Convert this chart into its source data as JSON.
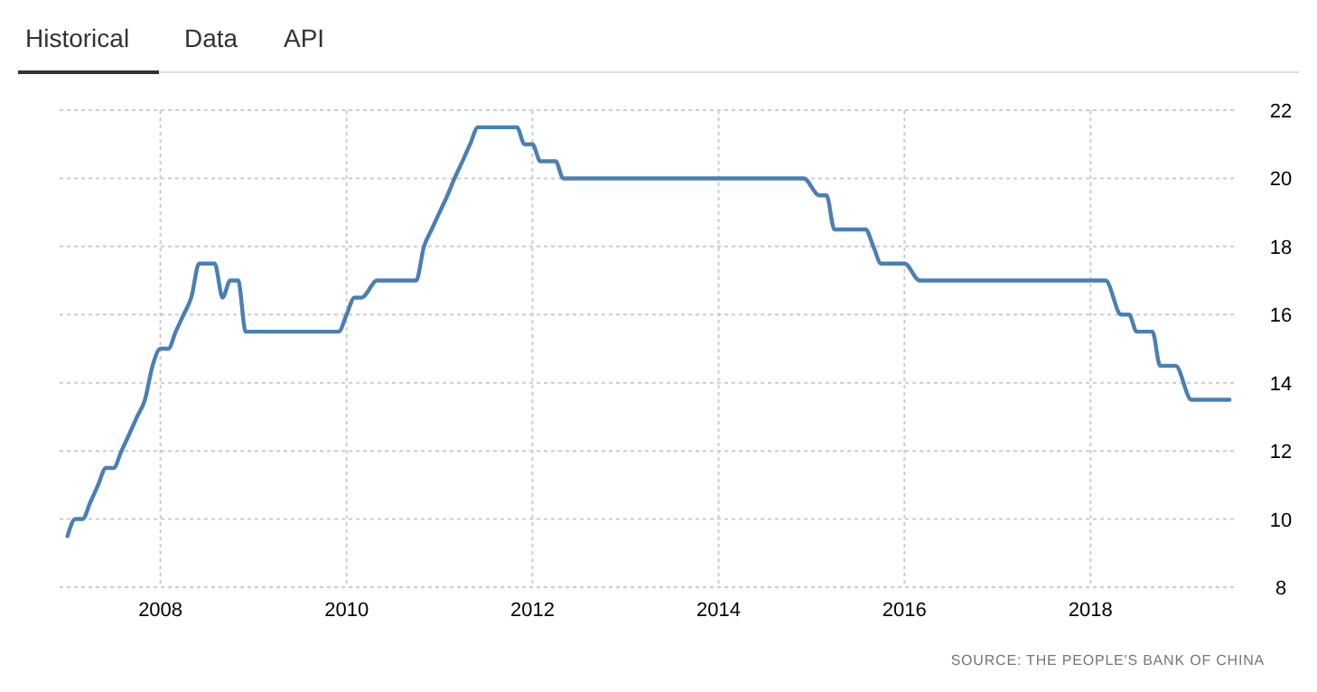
{
  "chart_data": {
    "type": "line",
    "x": [
      "2007-01",
      "2007-02",
      "2007-03",
      "2007-04",
      "2007-05",
      "2007-06",
      "2007-07",
      "2007-08",
      "2007-09",
      "2007-10",
      "2007-11",
      "2007-12",
      "2008-01",
      "2008-02",
      "2008-03",
      "2008-04",
      "2008-05",
      "2008-06",
      "2008-07",
      "2008-08",
      "2008-09",
      "2008-10",
      "2008-11",
      "2008-12",
      "2009-12",
      "2010-01",
      "2010-02",
      "2010-03",
      "2010-05",
      "2010-10",
      "2010-11",
      "2010-12",
      "2011-01",
      "2011-02",
      "2011-03",
      "2011-04",
      "2011-05",
      "2011-06",
      "2011-11",
      "2011-12",
      "2012-01",
      "2012-02",
      "2012-04",
      "2012-05",
      "2014-12",
      "2015-02",
      "2015-03",
      "2015-04",
      "2015-08",
      "2015-09",
      "2015-10",
      "2016-01",
      "2016-03",
      "2018-03",
      "2018-05",
      "2018-06",
      "2018-07",
      "2018-09",
      "2018-10",
      "2018-12",
      "2019-02",
      "2019-07"
    ],
    "series": [
      {
        "color": "#4a7fb5",
        "values": [
          9.5,
          10,
          10,
          10.5,
          11,
          11.5,
          11.5,
          12,
          12.5,
          13,
          13.5,
          14.5,
          15,
          15,
          15.5,
          16,
          16.5,
          17.5,
          17.5,
          17.5,
          16.5,
          17,
          17,
          15.5,
          15.5,
          16,
          16.5,
          16.5,
          17,
          17,
          18,
          18.5,
          19,
          19.5,
          20,
          20.5,
          21,
          21.5,
          21.5,
          21,
          21,
          20.5,
          20.5,
          20,
          20,
          19.5,
          19.5,
          18.5,
          18.5,
          18,
          17.5,
          17.5,
          17,
          17,
          16,
          16,
          15.5,
          15.5,
          14.5,
          14.5,
          13.5,
          13.5
        ]
      }
    ],
    "xlim": [
      "2006-12",
      "2019-08"
    ],
    "xticks": [
      {
        "value": "2008",
        "label": "2008"
      },
      {
        "value": "2010",
        "label": "2010"
      },
      {
        "value": "2012",
        "label": "2012"
      },
      {
        "value": "2014",
        "label": "2014"
      },
      {
        "value": "2016",
        "label": "2016"
      },
      {
        "value": "2018",
        "label": "2018"
      }
    ],
    "ylim": [
      8,
      22
    ],
    "yticks": [
      8,
      10,
      12,
      14,
      16,
      18,
      20,
      22
    ],
    "grid": true,
    "line_style": "solid",
    "annotations": [
      "Historical",
      "Data",
      "API",
      "SOURCE: THE PEOPLE'S BANK OF CHINA"
    ]
  }
}
